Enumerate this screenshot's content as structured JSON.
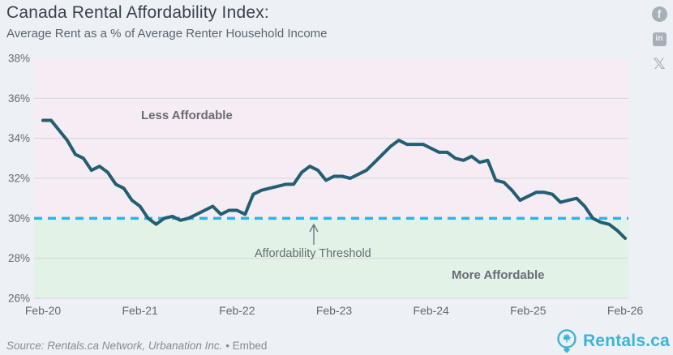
{
  "header": {
    "title": "Canada Rental Affordability Index:",
    "subtitle": "Average Rent as a % of Average Renter Household Income"
  },
  "social": {
    "facebook_label": "f",
    "linkedin_label": "in",
    "x_label": "𝕏"
  },
  "annotations": {
    "less_affordable": "Less Affordable",
    "more_affordable": "More Affordable",
    "threshold_label": "Affordability Threshold"
  },
  "footer": {
    "source_text": "Source: Rentals.ca Network, Urbanation Inc.",
    "separator": " • ",
    "embed_label": "Embed",
    "logo_text": "Rentals.ca"
  },
  "colors": {
    "background": "#edf1f6",
    "line_teal": "#235e72",
    "threshold_blue": "#2fb4e8",
    "less_affordable_bg": "#f6ecf3",
    "more_affordable_bg": "#e2f2e7",
    "gridline": "#d8d4da",
    "axis_text": "#63696f",
    "logo_blue": "#3cb4d8",
    "social_gray": "#a9afb7"
  },
  "chart_data": {
    "type": "line",
    "title": "Canada Rental Affordability Index",
    "subtitle": "Average Rent as a % of Average Renter Household Income",
    "frequency": "monthly",
    "x_start": "Feb-2020",
    "x_end": "Feb-2026",
    "x_tick_labels": [
      "Feb-20",
      "Feb-21",
      "Feb-22",
      "Feb-23",
      "Feb-24",
      "Feb-25",
      "Feb-26"
    ],
    "y_tick_labels": [
      "38%",
      "36%",
      "34%",
      "32%",
      "30%",
      "28%",
      "26%"
    ],
    "y_tick_values": [
      38,
      36,
      34,
      32,
      30,
      28,
      26
    ],
    "ylim": [
      26,
      38
    ],
    "grid": true,
    "legend": "none",
    "threshold": {
      "value": 30,
      "label": "Affordability Threshold",
      "style": "dashed",
      "color": "#2fb4e8"
    },
    "regions": [
      {
        "label": "Less Affordable",
        "range": [
          30,
          38
        ],
        "color": "#f6ecf3"
      },
      {
        "label": "More Affordable",
        "range": [
          26,
          30
        ],
        "color": "#e2f2e7"
      }
    ],
    "series": [
      {
        "name": "Average Rent as % of Average Renter Household Income",
        "color": "#235e72",
        "values": [
          34.9,
          34.9,
          34.4,
          33.9,
          33.2,
          33.0,
          32.4,
          32.6,
          32.3,
          31.7,
          31.5,
          30.9,
          30.6,
          30.0,
          29.7,
          30.0,
          30.1,
          29.9,
          30.0,
          30.2,
          30.4,
          30.6,
          30.2,
          30.4,
          30.4,
          30.2,
          31.2,
          31.4,
          31.5,
          31.6,
          31.7,
          31.7,
          32.3,
          32.6,
          32.4,
          31.9,
          32.1,
          32.1,
          32.0,
          32.2,
          32.4,
          32.8,
          33.2,
          33.6,
          33.9,
          33.7,
          33.7,
          33.7,
          33.5,
          33.3,
          33.3,
          33.0,
          32.9,
          33.1,
          32.8,
          32.9,
          31.9,
          31.8,
          31.4,
          30.9,
          31.1,
          31.3,
          31.3,
          31.2,
          30.8,
          30.9,
          31.0,
          30.6,
          30.0,
          29.8,
          29.7,
          29.4,
          29.0
        ]
      }
    ]
  }
}
